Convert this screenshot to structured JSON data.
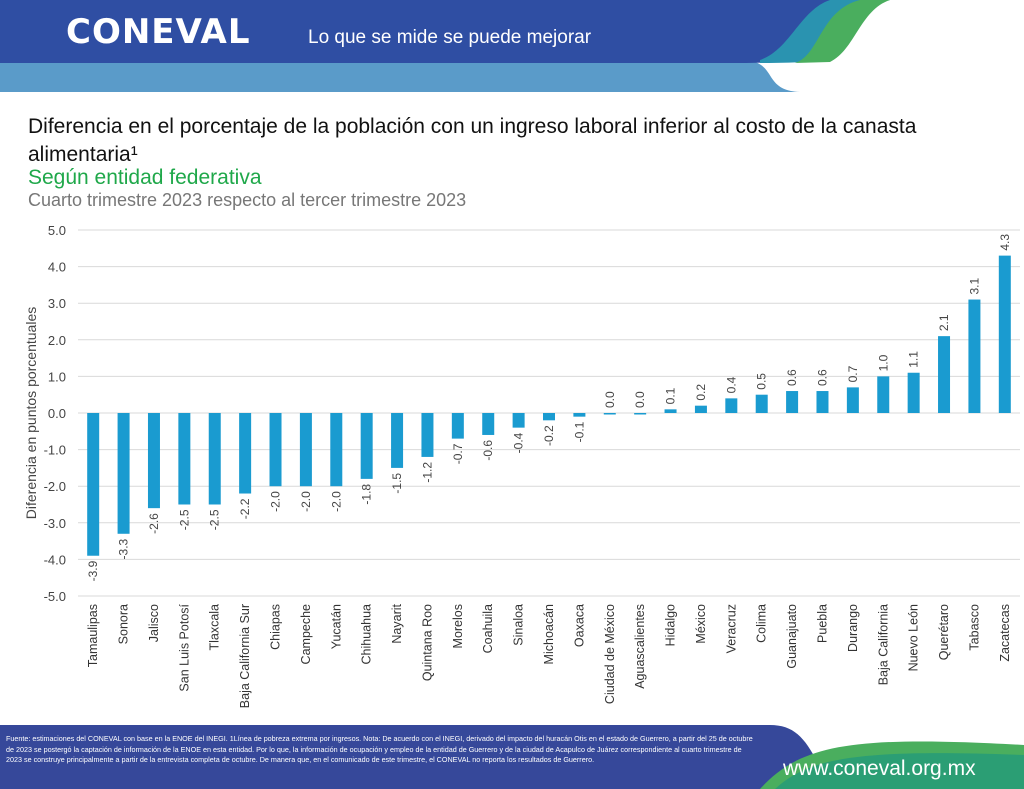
{
  "header": {
    "logo": "CONEVAL",
    "tagline": "Lo que se mide se puede mejorar"
  },
  "title": "Diferencia en el porcentaje de la población con un ingreso laboral inferior al costo de la canasta alimentaria¹",
  "subtitle": "Según entidad federativa",
  "subtitle2": "Cuarto trimestre 2023 respecto al tercer trimestre 2023",
  "footer": {
    "note": "Fuente: estimaciones del CONEVAL con base en la ENOE del INEGI. 1Línea de pobreza extrema por ingresos. Nota: De acuerdo con el INEGI, derivado del impacto del huracán Otis en el estado de Guerrero, a partir del 25 de octubre de 2023 se postergó la captación de información de la ENOE en esta entidad. Por lo que, la información de ocupación y empleo de la entidad de Guerrero y de la ciudad de Acapulco de Juárez correspondiente al cuarto trimestre de 2023 se construye principalmente a partir de la entrevista completa de octubre. De manera que, en el comunicado de este trimestre, el CONEVAL no reporta los resultados de Guerrero.",
    "url": "www.coneval.org.mx"
  },
  "colors": {
    "bar": "#1a9bd0",
    "header": "#2f4ea3",
    "accent_green": "#1fa84a",
    "light_blue": "#5a9bc9"
  },
  "chart_data": {
    "type": "bar",
    "ylabel": "Diferencia en puntos porcentuales",
    "ylim": [
      -5,
      5
    ],
    "yticks": [
      "5.0",
      "4.0",
      "3.0",
      "2.0",
      "1.0",
      "0.0",
      "-1.0",
      "-2.0",
      "-3.0",
      "-4.0",
      "-5.0"
    ],
    "grid": true,
    "categories": [
      "Tamaulipas",
      "Sonora",
      "Jalisco",
      "San Luis Potosí",
      "Tlaxcala",
      "Baja California Sur",
      "Chiapas",
      "Campeche",
      "Yucatán",
      "Chihuahua",
      "Nayarit",
      "Quintana Roo",
      "Morelos",
      "Coahuila",
      "Sinaloa",
      "Michoacán",
      "Oaxaca",
      "Ciudad de México",
      "Aguascalientes",
      "Hidalgo",
      "México",
      "Veracruz",
      "Colima",
      "Guanajuato",
      "Puebla",
      "Durango",
      "Baja California",
      "Nuevo León",
      "Querétaro",
      "Tabasco",
      "Zacatecas"
    ],
    "values": [
      -3.9,
      -3.3,
      -2.6,
      -2.5,
      -2.5,
      -2.2,
      -2.0,
      -2.0,
      -2.0,
      -1.8,
      -1.5,
      -1.2,
      -0.7,
      -0.6,
      -0.4,
      -0.2,
      -0.1,
      0.0,
      0.0,
      0.1,
      0.2,
      0.4,
      0.5,
      0.6,
      0.6,
      0.7,
      1.0,
      1.1,
      2.1,
      3.1,
      4.3
    ],
    "data_labels": [
      "-3.9",
      "-3.3",
      "-2.6",
      "-2.5",
      "-2.5",
      "-2.2",
      "-2.0",
      "-2.0",
      "-2.0",
      "-1.8",
      "-1.5",
      "-1.2",
      "-0.7",
      "-0.6",
      "-0.4",
      "-0.2",
      "-0.1",
      "0.0",
      "0.0",
      "0.1",
      "0.2",
      "0.4",
      "0.5",
      "0.6",
      "0.6",
      "0.7",
      "1.0",
      "1.1",
      "2.1",
      "3.1",
      "4.3"
    ]
  }
}
